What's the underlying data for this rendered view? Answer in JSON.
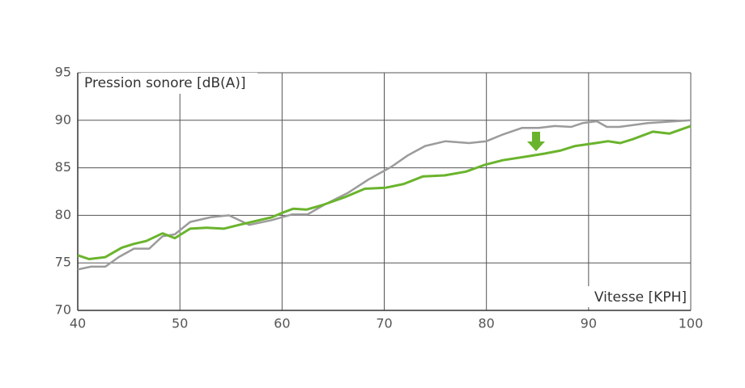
{
  "chart_data": {
    "type": "line",
    "y_label": "Pression sonore [dB(A)]",
    "x_label": "Vitesse [KPH]",
    "xlim": [
      40,
      100
    ],
    "xticks": [
      40,
      50,
      60,
      70,
      80,
      90,
      100
    ],
    "ylim": [
      70,
      95
    ],
    "yticks": [
      70,
      75,
      80,
      85,
      90,
      95
    ],
    "grid": true,
    "series": [
      {
        "color": "#9b9b9b",
        "x": [
          40,
          41.3,
          42.7,
          44,
          45.5,
          47,
          48.3,
          49.5,
          51,
          53,
          54.8,
          56.8,
          59,
          61,
          62.5,
          64.1,
          66.5,
          68.5,
          70.7,
          72.3,
          74,
          76,
          78.3,
          80,
          81.6,
          83.5,
          85.1,
          86.7,
          88.3,
          89.4,
          90.8,
          91.8,
          93,
          95.8,
          100
        ],
        "values": [
          74.3,
          74.6,
          74.6,
          75.6,
          76.5,
          76.5,
          77.8,
          78.0,
          79.3,
          79.8,
          80.0,
          79.0,
          79.5,
          80.1,
          80.1,
          81.1,
          82.4,
          83.8,
          85.1,
          86.3,
          87.3,
          87.8,
          87.6,
          87.8,
          88.5,
          89.2,
          89.2,
          89.4,
          89.3,
          89.7,
          89.9,
          89.3,
          89.3,
          89.7,
          90.0
        ]
      },
      {
        "color": "#6ab42d",
        "x": [
          40,
          41.1,
          42.7,
          44.3,
          45.5,
          46.7,
          48.3,
          49.5,
          51,
          52.6,
          54.3,
          55.8,
          57.4,
          59,
          60.1,
          61.1,
          62.4,
          64,
          66.1,
          68.1,
          70.1,
          71.9,
          73.8,
          75.9,
          78,
          79.8,
          81.6,
          84,
          85.7,
          87.2,
          88.7,
          90.7,
          91.9,
          93.1,
          94.3,
          96.3,
          97.9,
          100
        ],
        "values": [
          75.8,
          75.4,
          75.6,
          76.6,
          77.0,
          77.3,
          78.1,
          77.6,
          78.6,
          78.7,
          78.6,
          79.0,
          79.4,
          79.8,
          80.3,
          80.7,
          80.6,
          81.1,
          81.9,
          82.8,
          82.9,
          83.3,
          84.1,
          84.2,
          84.6,
          85.3,
          85.8,
          86.2,
          86.5,
          86.8,
          87.3,
          87.6,
          87.8,
          87.6,
          88.0,
          88.8,
          88.6,
          89.4
        ]
      }
    ]
  }
}
